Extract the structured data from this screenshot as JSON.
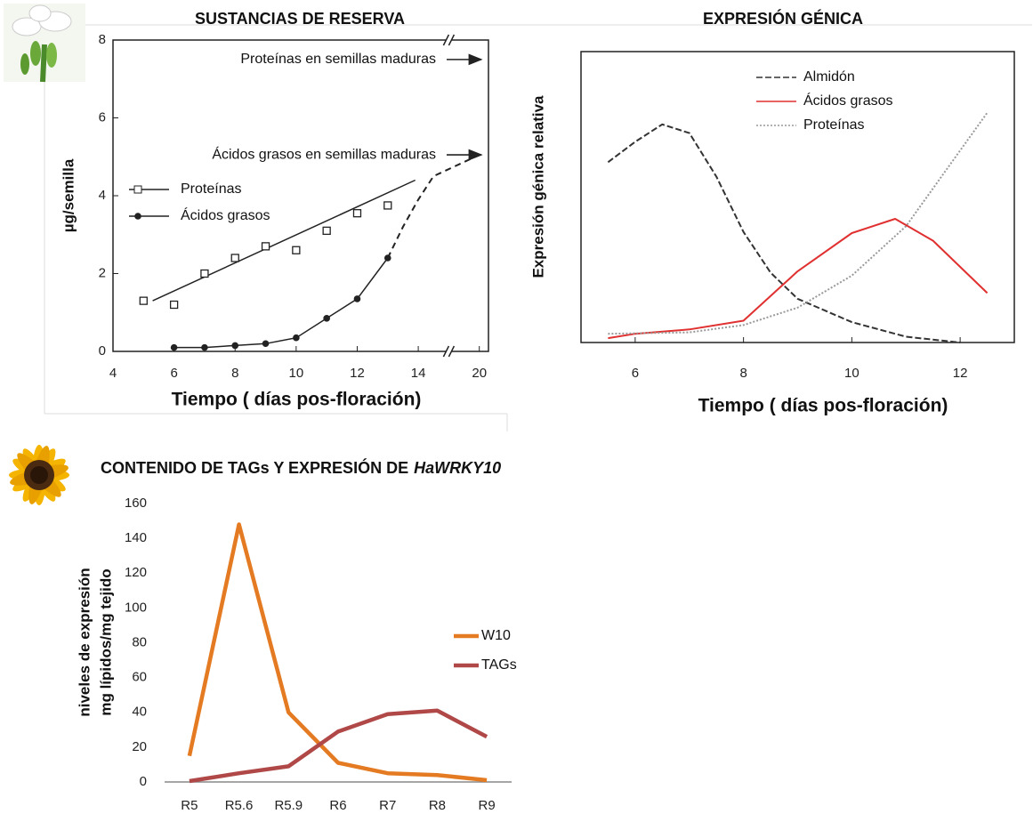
{
  "chart_data": [
    {
      "type": "scatter",
      "title": "SUSTANCIAS DE RESERVA",
      "x_label": "Tiempo ( días pos-floración)",
      "y_label": "µg/semilla",
      "xlim": [
        4,
        20.3
      ],
      "xticks": [
        4,
        6,
        8,
        10,
        12,
        14,
        20
      ],
      "x_break": [
        15,
        19
      ],
      "ylim": [
        0,
        8
      ],
      "yticks": [
        0,
        2,
        4,
        6,
        8
      ],
      "series": [
        {
          "name": "Proteínas",
          "marker": "square",
          "color": "#222",
          "x": [
            5,
            6,
            7,
            8,
            9,
            10,
            11,
            12,
            13
          ],
          "values": [
            1.3,
            1.2,
            2.0,
            2.4,
            2.7,
            2.6,
            3.1,
            3.55,
            3.75
          ],
          "fit_x": [
            5.3,
            13.9
          ],
          "fit_values": [
            1.3,
            4.4
          ]
        },
        {
          "name": "Ácidos grasos",
          "marker": "circle",
          "color": "#222",
          "x": [
            6,
            7,
            8,
            9,
            10,
            11,
            12,
            13
          ],
          "values": [
            0.1,
            0.1,
            0.15,
            0.2,
            0.35,
            0.85,
            1.35,
            2.4
          ],
          "projection_x": [
            13,
            13.5,
            14,
            14.5,
            20
          ],
          "projection_values": [
            2.4,
            3.2,
            3.9,
            4.5,
            5.05
          ]
        }
      ],
      "annotations": [
        {
          "text": "Proteínas en semillas maduras",
          "y": 7.5
        },
        {
          "text": "Ácidos grasos en semillas maduras",
          "y": 5.05
        }
      ]
    },
    {
      "type": "line",
      "title": "EXPRESIÓN GÉNICA",
      "x_label": "Tiempo ( días pos-floración)",
      "y_label": "Expresión génica relativa",
      "xlim": [
        5,
        13
      ],
      "xticks": [
        6,
        8,
        10,
        12
      ],
      "ylim": [
        0,
        1
      ],
      "series": [
        {
          "name": "Almidón",
          "color": "#333",
          "dash": "7,3",
          "x": [
            5.5,
            6,
            6.5,
            7,
            7.5,
            8,
            8.5,
            9,
            10,
            11,
            12
          ],
          "values": [
            0.62,
            0.69,
            0.75,
            0.72,
            0.57,
            0.38,
            0.24,
            0.15,
            0.07,
            0.02,
            0
          ]
        },
        {
          "name": "Ácidos grasos",
          "color": "#e03030",
          "dash": "none",
          "x": [
            5.5,
            6,
            7,
            8,
            9,
            10,
            10.8,
            11.5,
            12.5
          ],
          "values": [
            0.015,
            0.03,
            0.045,
            0.075,
            0.245,
            0.376,
            0.425,
            0.35,
            0.17
          ]
        },
        {
          "name": "Proteínas",
          "color": "#999",
          "dash": "2,2",
          "x": [
            5.5,
            7,
            8,
            9,
            10,
            11,
            12,
            12.5
          ],
          "values": [
            0.03,
            0.035,
            0.06,
            0.12,
            0.23,
            0.4,
            0.66,
            0.79
          ]
        }
      ]
    },
    {
      "type": "line",
      "title": "CONTENIDO DE TAGs Y EXPRESIÓN DE",
      "title_gene": "HaWRKY10",
      "y_label": [
        "niveles de expresión",
        "mg lípidos/mg tejido"
      ],
      "categories": [
        "R5",
        "R5.6",
        "R5.9",
        "R6",
        "R7",
        "R8",
        "R9"
      ],
      "ylim": [
        0,
        160
      ],
      "yticks": [
        0,
        20,
        40,
        60,
        80,
        100,
        120,
        140,
        160
      ],
      "series": [
        {
          "name": "W10",
          "color": "#e47b22",
          "dash": "none",
          "values": [
            15,
            148,
            40,
            11,
            5,
            4,
            1
          ]
        },
        {
          "name": "TAGs",
          "color": "#b04848",
          "dash": "none",
          "values": [
            0.5,
            5,
            9,
            29,
            39,
            41,
            26
          ]
        }
      ]
    }
  ]
}
